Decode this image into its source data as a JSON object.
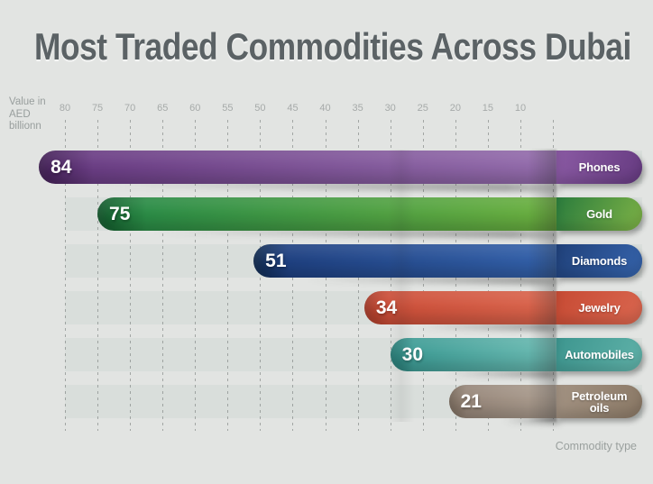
{
  "title": "Most Traded Commodities Across Dubai",
  "value_axis": {
    "label_lines": [
      "Value in",
      "AED",
      "billionn"
    ],
    "ticks": [
      80,
      75,
      70,
      65,
      60,
      55,
      50,
      45,
      40,
      35,
      30,
      25,
      20,
      15,
      10
    ]
  },
  "category_axis": {
    "label": "Commodity type"
  },
  "chart_data": {
    "type": "bar",
    "orientation": "horizontal",
    "value_axis_direction": "descending-left-to-right",
    "title": "Most Traded Commodities Across Dubai",
    "value_axis_label": "Value in AED billionn",
    "category_axis_label": "Commodity type",
    "value_ticks": [
      80,
      75,
      70,
      65,
      60,
      55,
      50,
      45,
      40,
      35,
      30,
      25,
      20,
      15,
      10
    ],
    "value_axis_range": [
      0,
      88
    ],
    "grid": "dashed-vertical",
    "legend": "none",
    "categories": [
      "Phones",
      "Gold",
      "Diamonds",
      "Jewelry",
      "Automobiles",
      "Petroleum oils"
    ],
    "values": [
      84,
      75,
      51,
      34,
      30,
      21
    ],
    "rows": [
      {
        "label": "Phones",
        "value": 84,
        "colors": {
          "bar": [
            "#421f56",
            "#6b3e85",
            "#9c76b4"
          ],
          "capsule": [
            "#8a5aa3",
            "#653a80"
          ]
        }
      },
      {
        "label": "Gold",
        "value": 75,
        "colors": {
          "bar": [
            "#115a2c",
            "#2b8c46",
            "#79b83e"
          ],
          "capsule": [
            "#2b7c3d",
            "#7db246"
          ]
        }
      },
      {
        "label": "Diamonds",
        "value": 51,
        "colors": {
          "bar": [
            "#0f2a50",
            "#1f4182",
            "#3a6cb8"
          ],
          "capsule": [
            "#20417a",
            "#3563ab"
          ]
        }
      },
      {
        "label": "Jewelry",
        "value": 34,
        "colors": {
          "bar": [
            "#aa3a27",
            "#cd4f39",
            "#e17057"
          ],
          "capsule": [
            "#c74b34",
            "#d9664f"
          ]
        }
      },
      {
        "label": "Automobiles",
        "value": 30,
        "colors": {
          "bar": [
            "#23807a",
            "#3f9d96",
            "#85ccc3"
          ],
          "capsule": [
            "#3d968f",
            "#60b2a9"
          ]
        }
      },
      {
        "label": "Petroleum oils",
        "value": 21,
        "colors": {
          "bar": [
            "#7b6b5c",
            "#97877a",
            "#c2b5a7"
          ],
          "capsule": [
            "#a29282",
            "#8a7865"
          ]
        }
      }
    ]
  },
  "colors": {
    "background": "#e2e4e2",
    "row_track": "#d9dedb",
    "title_text": "#5b6265",
    "axis_text": "#a6aaa9",
    "bar_value_text": "#ffffff",
    "capsule_label_text": "#ffffff"
  }
}
